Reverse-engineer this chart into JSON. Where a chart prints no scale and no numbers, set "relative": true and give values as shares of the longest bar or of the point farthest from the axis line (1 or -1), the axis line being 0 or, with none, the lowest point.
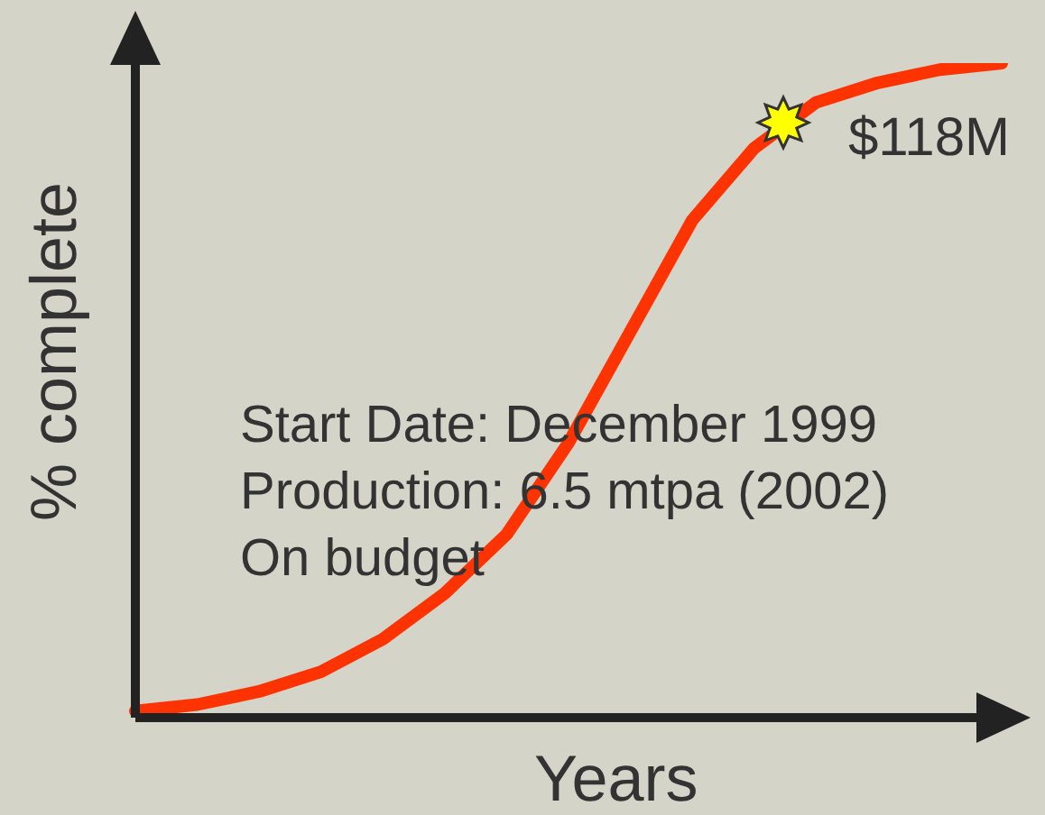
{
  "chart_data": {
    "type": "line",
    "relative": true,
    "xlabel": "Years",
    "ylabel": "% complete",
    "categories": [
      null,
      null,
      null,
      null,
      null,
      null,
      null,
      null,
      null,
      null,
      null,
      null,
      null,
      null,
      null
    ],
    "series": [
      {
        "color": "#ff3300",
        "marker": "none",
        "values": [
          0.01,
          0.02,
          0.04,
          0.07,
          0.12,
          0.19,
          0.28,
          0.42,
          0.59,
          0.76,
          0.87,
          0.94,
          0.97,
          0.99,
          1.0
        ]
      }
    ],
    "annotations": [
      "$118M",
      "Start Date: December 1999",
      "Production: 6.5 mtpa (2002)",
      "On budget"
    ],
    "legend": false
  }
}
